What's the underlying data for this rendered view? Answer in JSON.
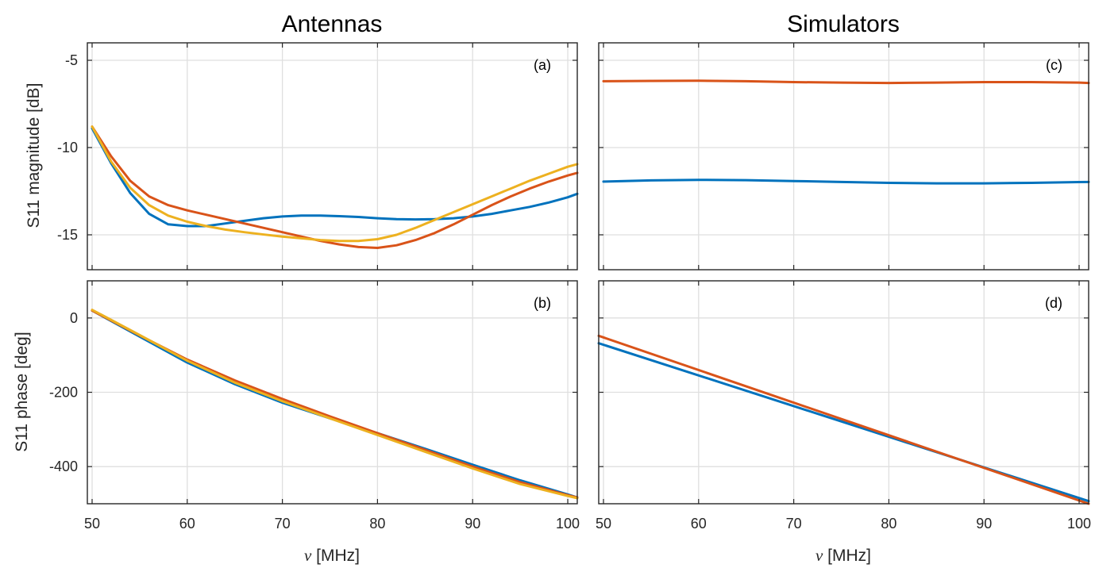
{
  "figure": {
    "column_titles": [
      "Antennas",
      "Simulators"
    ],
    "xlabel_symbol": "ν",
    "xlabel_unit": " [MHz]",
    "ylabel_top": "S11 magnitude [dB]",
    "ylabel_bottom": "S11 phase [deg]"
  },
  "colors": {
    "blue": "#0072bd",
    "orange": "#d95319",
    "yellow": "#edb120"
  },
  "chart_data": [
    {
      "id": "a",
      "panel_label": "(a)",
      "type": "line",
      "xlim": [
        49.5,
        101
      ],
      "ylim": [
        -17,
        -4
      ],
      "xticks": [
        50,
        60,
        70,
        80,
        90,
        100
      ],
      "yticks": [
        -5,
        -10,
        -15
      ],
      "ytick_labels": [
        "-5",
        "-10",
        "-15"
      ],
      "grid": true,
      "series": [
        {
          "color": "#0072bd",
          "x": [
            50,
            52,
            54,
            56,
            58,
            60,
            62,
            64,
            66,
            68,
            70,
            72,
            74,
            76,
            78,
            80,
            82,
            84,
            86,
            88,
            90,
            92,
            94,
            96,
            98,
            100,
            101
          ],
          "y": [
            -8.9,
            -10.9,
            -12.6,
            -13.8,
            -14.4,
            -14.5,
            -14.5,
            -14.35,
            -14.2,
            -14.05,
            -13.95,
            -13.9,
            -13.9,
            -13.93,
            -13.98,
            -14.05,
            -14.1,
            -14.12,
            -14.1,
            -14.05,
            -13.95,
            -13.8,
            -13.6,
            -13.4,
            -13.15,
            -12.85,
            -12.65
          ]
        },
        {
          "color": "#d95319",
          "x": [
            50,
            52,
            54,
            56,
            58,
            60,
            62,
            64,
            66,
            68,
            70,
            72,
            74,
            76,
            78,
            80,
            82,
            84,
            86,
            88,
            90,
            92,
            94,
            96,
            98,
            100,
            101
          ],
          "y": [
            -8.8,
            -10.5,
            -11.9,
            -12.8,
            -13.3,
            -13.6,
            -13.85,
            -14.1,
            -14.35,
            -14.6,
            -14.85,
            -15.1,
            -15.35,
            -15.55,
            -15.7,
            -15.75,
            -15.6,
            -15.3,
            -14.9,
            -14.4,
            -13.85,
            -13.3,
            -12.8,
            -12.35,
            -11.95,
            -11.6,
            -11.45
          ]
        },
        {
          "color": "#edb120",
          "x": [
            50,
            52,
            54,
            56,
            58,
            60,
            62,
            64,
            66,
            68,
            70,
            72,
            74,
            76,
            78,
            80,
            82,
            84,
            86,
            88,
            90,
            92,
            94,
            96,
            98,
            100,
            101
          ],
          "y": [
            -8.8,
            -10.8,
            -12.3,
            -13.3,
            -13.9,
            -14.25,
            -14.5,
            -14.7,
            -14.85,
            -14.98,
            -15.1,
            -15.2,
            -15.3,
            -15.35,
            -15.35,
            -15.25,
            -15.0,
            -14.6,
            -14.15,
            -13.7,
            -13.25,
            -12.8,
            -12.35,
            -11.9,
            -11.5,
            -11.1,
            -10.95
          ]
        }
      ]
    },
    {
      "id": "c",
      "panel_label": "(c)",
      "type": "line",
      "xlim": [
        49.5,
        101
      ],
      "ylim": [
        -17,
        -4
      ],
      "xticks": [
        50,
        60,
        70,
        80,
        90,
        100
      ],
      "yticks": [
        -5,
        -10,
        -15
      ],
      "ytick_labels": [],
      "grid": true,
      "series": [
        {
          "color": "#d95319",
          "x": [
            50,
            55,
            60,
            65,
            70,
            75,
            80,
            85,
            90,
            95,
            100,
            101
          ],
          "y": [
            -6.2,
            -6.18,
            -6.17,
            -6.2,
            -6.25,
            -6.28,
            -6.3,
            -6.28,
            -6.25,
            -6.25,
            -6.28,
            -6.3
          ]
        },
        {
          "color": "#0072bd",
          "x": [
            50,
            55,
            60,
            65,
            70,
            75,
            80,
            85,
            90,
            95,
            100,
            101
          ],
          "y": [
            -11.95,
            -11.88,
            -11.85,
            -11.87,
            -11.92,
            -11.97,
            -12.02,
            -12.05,
            -12.05,
            -12.02,
            -11.98,
            -11.97
          ]
        }
      ]
    },
    {
      "id": "b",
      "panel_label": "(b)",
      "type": "line",
      "xlim": [
        49.5,
        101
      ],
      "ylim": [
        -500,
        100
      ],
      "xticks": [
        50,
        60,
        70,
        80,
        90,
        100
      ],
      "xtick_labels": [
        "50",
        "60",
        "70",
        "80",
        "90",
        "100"
      ],
      "yticks": [
        0,
        -200,
        -400
      ],
      "ytick_labels": [
        "0",
        "-200",
        "-400"
      ],
      "grid": true,
      "series": [
        {
          "color": "#0072bd",
          "x": [
            50,
            55,
            60,
            65,
            70,
            75,
            80,
            85,
            90,
            95,
            100,
            101
          ],
          "y": [
            20,
            -50,
            -120,
            -178,
            -228,
            -270,
            -310,
            -352,
            -395,
            -437,
            -475,
            -483
          ]
        },
        {
          "color": "#d95319",
          "x": [
            50,
            55,
            60,
            65,
            70,
            75,
            80,
            85,
            90,
            95,
            100,
            101
          ],
          "y": [
            20,
            -47,
            -112,
            -168,
            -218,
            -265,
            -310,
            -355,
            -400,
            -442,
            -477,
            -483
          ]
        },
        {
          "color": "#edb120",
          "x": [
            50,
            55,
            60,
            65,
            70,
            75,
            80,
            85,
            90,
            95,
            100,
            101
          ],
          "y": [
            22,
            -46,
            -115,
            -174,
            -224,
            -270,
            -315,
            -360,
            -405,
            -447,
            -479,
            -485
          ]
        }
      ]
    },
    {
      "id": "d",
      "panel_label": "(d)",
      "type": "line",
      "xlim": [
        49.5,
        101
      ],
      "ylim": [
        -500,
        100
      ],
      "xticks": [
        50,
        60,
        70,
        80,
        90,
        100
      ],
      "xtick_labels": [
        "50",
        "60",
        "70",
        "80",
        "90",
        "100"
      ],
      "yticks": [
        0,
        -200,
        -400
      ],
      "ytick_labels": [],
      "grid": true,
      "series": [
        {
          "color": "#0072bd",
          "x": [
            49.5,
            101
          ],
          "y": [
            -68,
            -493
          ]
        },
        {
          "color": "#d95319",
          "x": [
            49.5,
            101
          ],
          "y": [
            -48,
            -500
          ]
        }
      ]
    }
  ]
}
